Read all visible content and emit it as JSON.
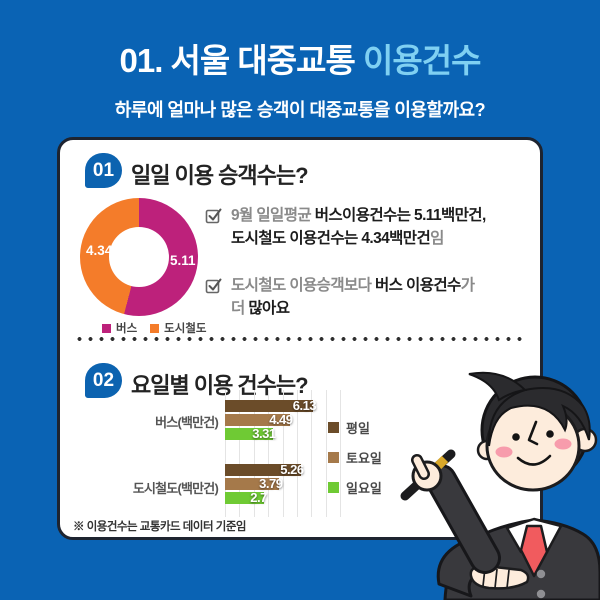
{
  "header": {
    "title_prefix": "01. 서울 대중교통 ",
    "title_accent": "이용건수",
    "subtitle": "하루에 얼마나 많은 승객이 대중교통을 이용할까요?"
  },
  "colors": {
    "background_blue": "#0a63b4",
    "title_accent_blue": "#7fd0f2",
    "badge_blue": "#0c63b0",
    "card_border": "#1e2430",
    "bus_magenta": "#bd217b",
    "subway_orange": "#f47c2a",
    "weekday_brown": "#6b4c29",
    "saturday_tan": "#a5794a",
    "sunday_green": "#6fca34"
  },
  "section1": {
    "badge": "01",
    "heading": "일일 이용 승객수는?",
    "notes": {
      "n1_reg1": "9월 일일평균 ",
      "n1_bold1": "버스이용건수는 5.11백만건,",
      "n1_bold2": "도시철도 이용건수는 4.34백만건",
      "n1_reg2": "임",
      "n2_reg1": "도시철도 이용승객보다 ",
      "n2_bold1": "버스 이용건수",
      "n2_reg2": "가",
      "n2_reg3": "더 ",
      "n2_bold2": "많아요"
    }
  },
  "section2": {
    "badge": "02",
    "heading": "요일별 이용 건수는?",
    "footnote": "※ 이용건수는 교통카드 데이터 기준임"
  },
  "chart_data": [
    {
      "type": "pie",
      "title": "일일 이용 승객수",
      "donut": true,
      "series": [
        {
          "name": "버스",
          "value": 5.11,
          "color": "#bd217b"
        },
        {
          "name": "도시철도",
          "value": 4.34,
          "color": "#f47c2a"
        }
      ],
      "legend_position": "bottom",
      "labels_shown": [
        "5.11",
        "4.34"
      ]
    },
    {
      "type": "bar",
      "orientation": "horizontal",
      "title": "요일별 이용 건수",
      "categories": [
        "버스(백만건)",
        "도시철도(백만건)"
      ],
      "series": [
        {
          "name": "평일",
          "color": "#6b4c29",
          "values": [
            6.13,
            5.26
          ]
        },
        {
          "name": "토요일",
          "color": "#a5794a",
          "values": [
            4.49,
            3.79
          ]
        },
        {
          "name": "일요일",
          "color": "#6fca34",
          "values": [
            3.31,
            2.7
          ]
        }
      ],
      "xlim": [
        0,
        8
      ],
      "grid": true,
      "legend_position": "right"
    }
  ]
}
